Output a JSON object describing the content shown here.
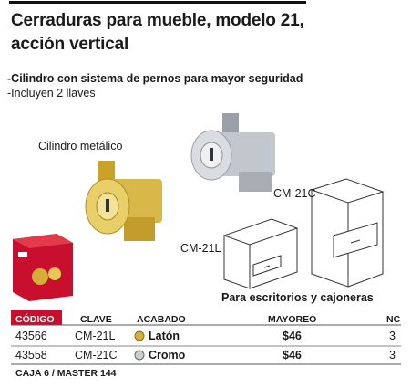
{
  "header": {
    "title_lines": [
      "Cerraduras para mueble, modelo 21,",
      "acción vertical"
    ]
  },
  "features": [
    "-Cilindro con sistema de pernos para mayor seguridad",
    "-Incluyen 2 llaves"
  ],
  "image_labels": {
    "cylinder": "Cilindro metálico",
    "chrome_model": "CM-21C",
    "brass_model": "CM-21L",
    "usage": "Para escritorios y cajoneras"
  },
  "table": {
    "columns": [
      "CÓDIGO",
      "CLAVE",
      "ACABADO",
      "MAYOREO",
      "NC"
    ],
    "rows": [
      [
        "43566",
        "CM-21L",
        "Latón",
        "$46",
        "3"
      ],
      [
        "43558",
        "CM-21C",
        "Cromo",
        "$46",
        "3"
      ]
    ]
  },
  "footer": "CAJA 6 / MASTER 144"
}
